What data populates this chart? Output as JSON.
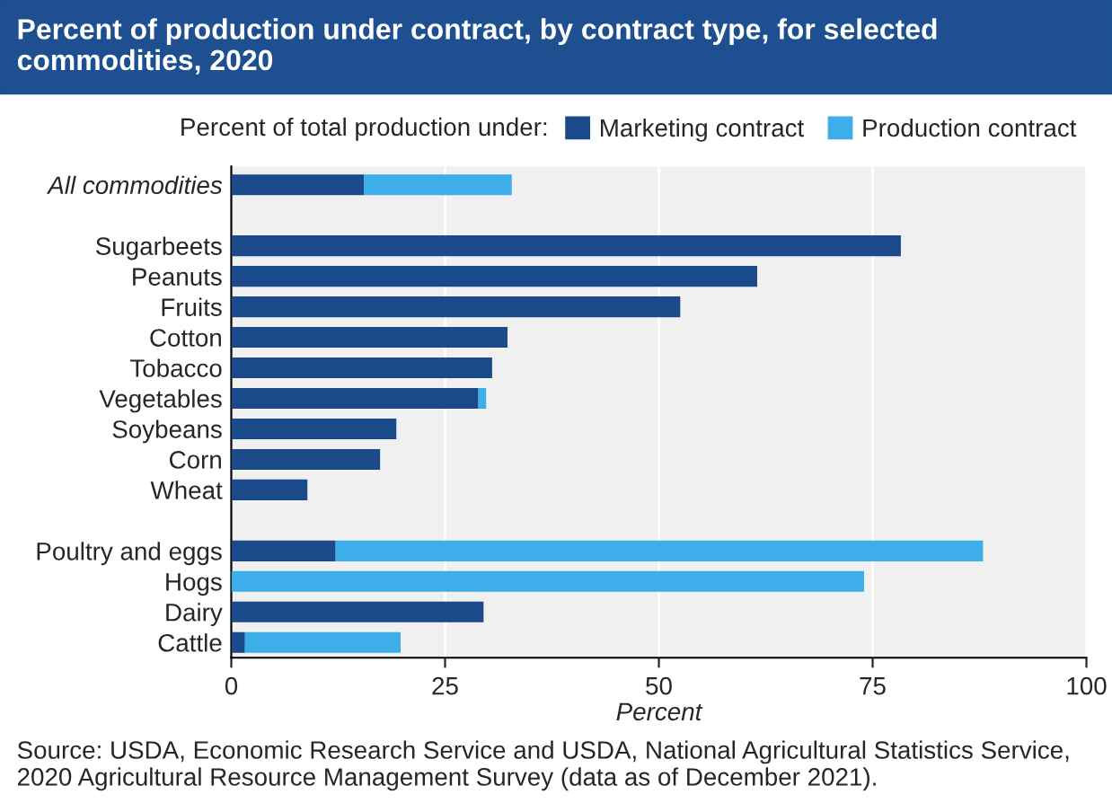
{
  "chart_data": {
    "type": "bar",
    "orientation": "horizontal",
    "stacked": true,
    "title": "Percent of production under contract, by contract type, for selected commodities, 2020",
    "legend_title": "Percent of total production under:",
    "xlabel": "Percent",
    "categories": [
      "All commodities",
      null,
      "Sugarbeets",
      "Peanuts",
      "Fruits",
      "Cotton",
      "Tobacco",
      "Vegetables",
      "Soybeans",
      "Corn",
      "Wheat",
      null,
      "Poultry and eggs",
      "Hogs",
      "Dairy",
      "Cattle"
    ],
    "series": [
      {
        "name": "Marketing contract",
        "color": "#1a4a8a",
        "values": [
          15.5,
          null,
          78.3,
          61.5,
          52.5,
          32.3,
          30.5,
          28.9,
          19.3,
          17.4,
          8.9,
          null,
          12.2,
          0,
          29.5,
          1.6
        ]
      },
      {
        "name": "Production contract",
        "color": "#3daee9",
        "values": [
          17.3,
          null,
          0,
          0,
          0,
          0,
          0,
          0.9,
          0,
          0,
          0,
          null,
          75.7,
          74.0,
          0,
          18.2
        ]
      }
    ],
    "xlim": [
      0,
      100
    ],
    "xticks": [
      0,
      25,
      50,
      75,
      100
    ],
    "grid": "x",
    "legend": "top",
    "annotations": [
      "Source: USDA, Economic Research Service and USDA, National Agricultural Statistics Service, 2020 Agricultural Resource Management Survey (data as of December 2021)."
    ]
  }
}
